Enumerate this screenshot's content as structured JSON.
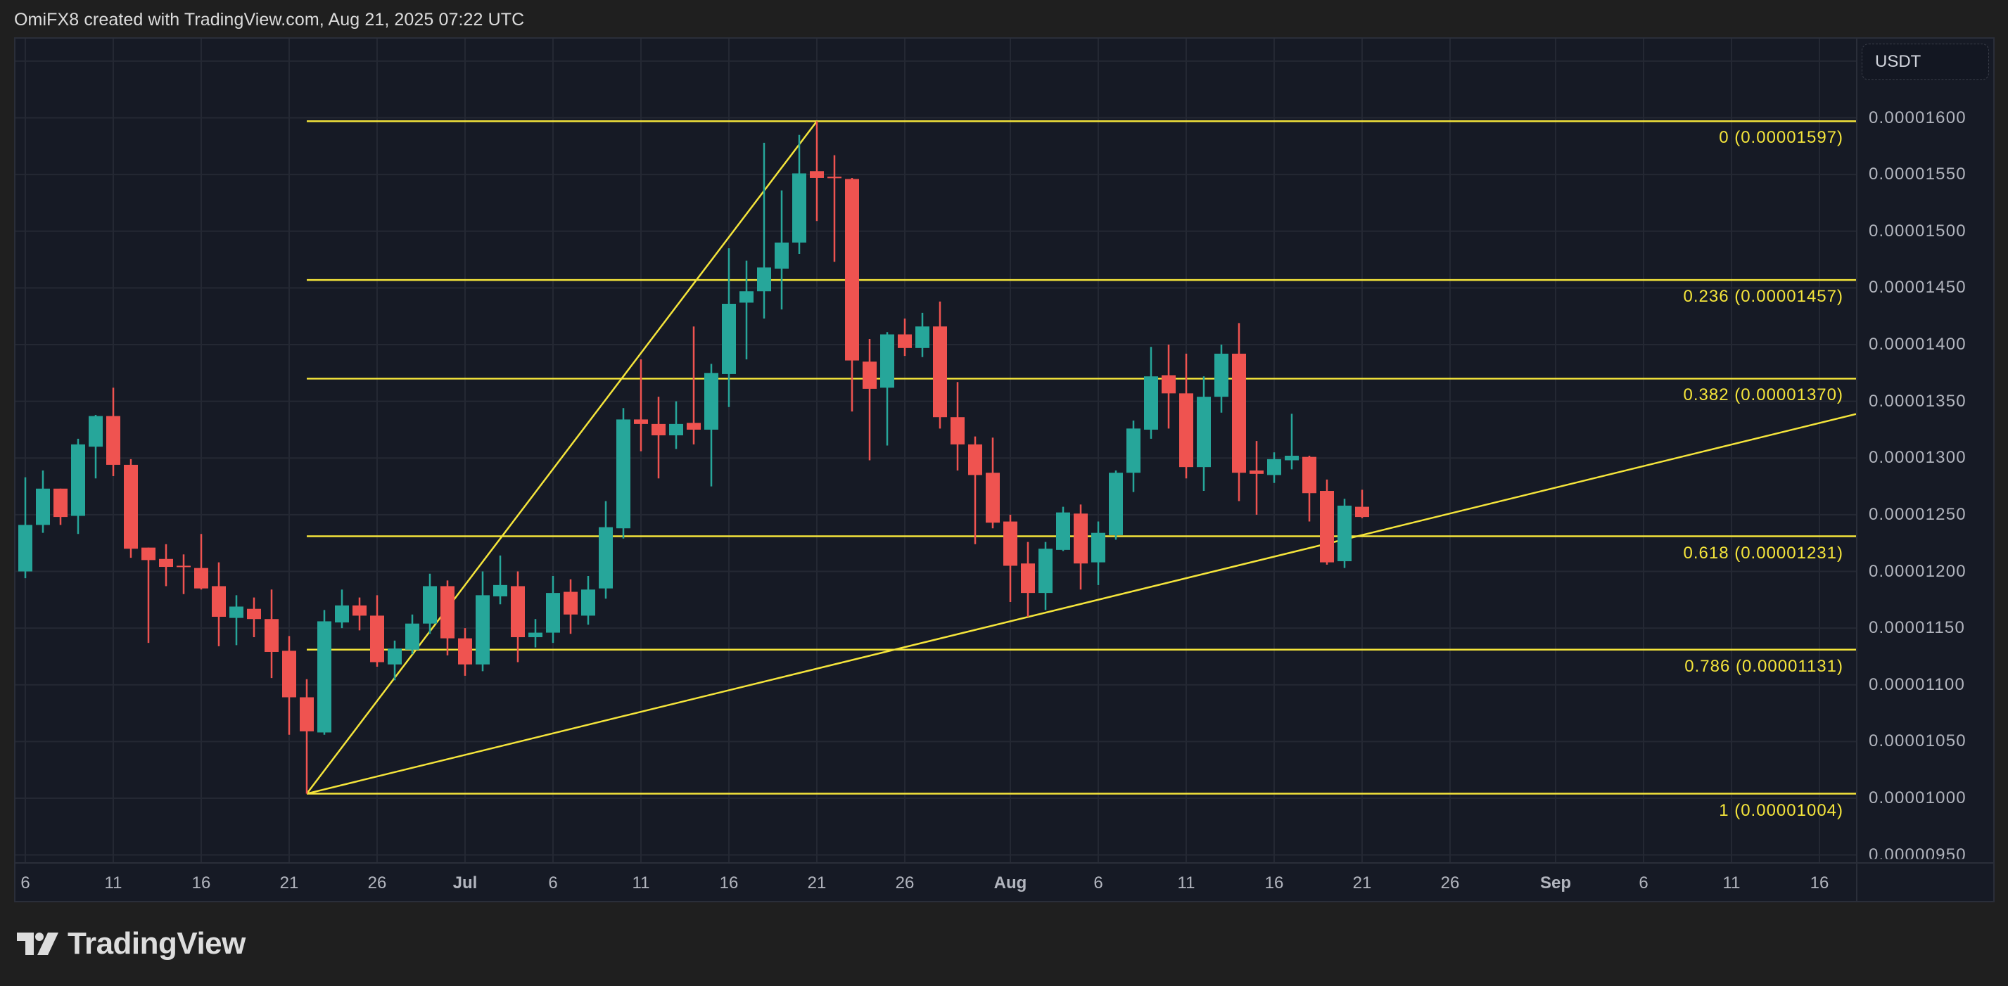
{
  "header": {
    "title": "OmiFX8 created with TradingView.com, Aug 21, 2025 07:22 UTC"
  },
  "price_axis": {
    "currency": "USDT",
    "labels": [
      "0.00001600",
      "0.00001550",
      "0.00001500",
      "0.00001450",
      "0.00001400",
      "0.00001350",
      "0.00001300",
      "0.00001250",
      "0.00001200",
      "0.00001150",
      "0.00001100",
      "0.00001050",
      "0.00001000",
      "0.00000950"
    ]
  },
  "time_axis": {
    "labels": [
      {
        "text": "6",
        "bold": false
      },
      {
        "text": "11",
        "bold": false
      },
      {
        "text": "16",
        "bold": false
      },
      {
        "text": "21",
        "bold": false
      },
      {
        "text": "26",
        "bold": false
      },
      {
        "text": "Jul",
        "bold": true
      },
      {
        "text": "6",
        "bold": false
      },
      {
        "text": "11",
        "bold": false
      },
      {
        "text": "16",
        "bold": false
      },
      {
        "text": "21",
        "bold": false
      },
      {
        "text": "26",
        "bold": false
      },
      {
        "text": "Aug",
        "bold": true
      },
      {
        "text": "6",
        "bold": false
      },
      {
        "text": "11",
        "bold": false
      },
      {
        "text": "16",
        "bold": false
      },
      {
        "text": "21",
        "bold": false
      },
      {
        "text": "26",
        "bold": false
      },
      {
        "text": "Sep",
        "bold": true
      },
      {
        "text": "6",
        "bold": false
      },
      {
        "text": "11",
        "bold": false
      },
      {
        "text": "16",
        "bold": false
      }
    ]
  },
  "fibonacci": {
    "color": "#f5e53b",
    "levels": [
      {
        "ratio": "0",
        "price": "0.00001597",
        "label": "0 (0.00001597)"
      },
      {
        "ratio": "0.236",
        "price": "0.00001457",
        "label": "0.236 (0.00001457)"
      },
      {
        "ratio": "0.382",
        "price": "0.00001370",
        "label": "0.382 (0.00001370)"
      },
      {
        "ratio": "0.618",
        "price": "0.00001231",
        "label": "0.618 (0.00001231)"
      },
      {
        "ratio": "0.786",
        "price": "0.00001131",
        "label": "0.786 (0.00001131)"
      },
      {
        "ratio": "1",
        "price": "0.00001004",
        "label": "1 (0.00001004)"
      }
    ]
  },
  "colors": {
    "up": "#26a69a",
    "down": "#ef5350",
    "background": "#161a25",
    "grid": "#242833",
    "drawing": "#f5e53b"
  },
  "logo": {
    "text": "TradingView"
  },
  "chart_data": {
    "type": "candlestick",
    "title": "OmiFX8 created with TradingView.com, Aug 21, 2025 07:22 UTC",
    "quote_currency": "USDT",
    "price_scale": 1e-08,
    "xlabel": "",
    "ylabel": "USDT",
    "ylim": [
      9.5e-06,
      1.65e-05
    ],
    "grid": true,
    "x": [
      "Jun 6",
      "Jun 7",
      "Jun 8",
      "Jun 9",
      "Jun 10",
      "Jun 11",
      "Jun 12",
      "Jun 13",
      "Jun 14",
      "Jun 15",
      "Jun 16",
      "Jun 17",
      "Jun 18",
      "Jun 19",
      "Jun 20",
      "Jun 21",
      "Jun 22",
      "Jun 23",
      "Jun 24",
      "Jun 25",
      "Jun 26",
      "Jun 27",
      "Jun 28",
      "Jun 29",
      "Jun 30",
      "Jul 1",
      "Jul 2",
      "Jul 3",
      "Jul 4",
      "Jul 5",
      "Jul 6",
      "Jul 7",
      "Jul 8",
      "Jul 9",
      "Jul 10",
      "Jul 11",
      "Jul 12",
      "Jul 13",
      "Jul 14",
      "Jul 15",
      "Jul 16",
      "Jul 17",
      "Jul 18",
      "Jul 19",
      "Jul 20",
      "Jul 21",
      "Jul 22",
      "Jul 23",
      "Jul 24",
      "Jul 25",
      "Jul 26",
      "Jul 27",
      "Jul 28",
      "Jul 29",
      "Jul 30",
      "Jul 31",
      "Aug 1",
      "Aug 2",
      "Aug 3",
      "Aug 4",
      "Aug 5",
      "Aug 6",
      "Aug 7",
      "Aug 8",
      "Aug 9",
      "Aug 10",
      "Aug 11",
      "Aug 12",
      "Aug 13",
      "Aug 14",
      "Aug 15",
      "Aug 16",
      "Aug 17",
      "Aug 18",
      "Aug 19",
      "Aug 20",
      "Aug 21"
    ],
    "ohlc_x1e8": [
      [
        1200,
        1283,
        1194,
        1241
      ],
      [
        1241,
        1289,
        1234,
        1273
      ],
      [
        1273,
        1273,
        1241,
        1248
      ],
      [
        1249,
        1317,
        1233,
        1312
      ],
      [
        1310,
        1338,
        1282,
        1337
      ],
      [
        1337,
        1362,
        1284,
        1294
      ],
      [
        1294,
        1299,
        1212,
        1220
      ],
      [
        1221,
        1221,
        1137,
        1210
      ],
      [
        1211,
        1224,
        1187,
        1204
      ],
      [
        1205,
        1215,
        1180,
        1204
      ],
      [
        1203,
        1233,
        1184,
        1185
      ],
      [
        1187,
        1208,
        1134,
        1160
      ],
      [
        1159,
        1179,
        1135,
        1169
      ],
      [
        1167,
        1177,
        1142,
        1158
      ],
      [
        1158,
        1184,
        1106,
        1129
      ],
      [
        1130,
        1143,
        1056,
        1089
      ],
      [
        1089,
        1105,
        1004,
        1059
      ],
      [
        1058,
        1166,
        1056,
        1156
      ],
      [
        1155,
        1184,
        1150,
        1170
      ],
      [
        1170,
        1177,
        1148,
        1161
      ],
      [
        1161,
        1179,
        1116,
        1120
      ],
      [
        1118,
        1139,
        1104,
        1132
      ],
      [
        1131,
        1162,
        1127,
        1154
      ],
      [
        1154,
        1198,
        1145,
        1187
      ],
      [
        1187,
        1192,
        1126,
        1141
      ],
      [
        1141,
        1150,
        1108,
        1118
      ],
      [
        1118,
        1200,
        1112,
        1179
      ],
      [
        1178,
        1214,
        1171,
        1188
      ],
      [
        1187,
        1200,
        1120,
        1142
      ],
      [
        1142,
        1158,
        1133,
        1146
      ],
      [
        1146,
        1196,
        1137,
        1181
      ],
      [
        1182,
        1193,
        1145,
        1162
      ],
      [
        1161,
        1196,
        1153,
        1184
      ],
      [
        1185,
        1262,
        1176,
        1239
      ],
      [
        1238,
        1344,
        1229,
        1334
      ],
      [
        1334,
        1387,
        1306,
        1330
      ],
      [
        1330,
        1354,
        1282,
        1320
      ],
      [
        1320,
        1350,
        1308,
        1330
      ],
      [
        1331,
        1416,
        1312,
        1325
      ],
      [
        1325,
        1383,
        1275,
        1375
      ],
      [
        1374,
        1485,
        1345,
        1436
      ],
      [
        1437,
        1474,
        1387,
        1447
      ],
      [
        1447,
        1578,
        1423,
        1468
      ],
      [
        1467,
        1536,
        1431,
        1490
      ],
      [
        1490,
        1585,
        1480,
        1551
      ],
      [
        1553,
        1597,
        1509,
        1547
      ],
      [
        1548,
        1567,
        1473,
        1547
      ],
      [
        1546,
        1547,
        1341,
        1386
      ],
      [
        1385,
        1405,
        1298,
        1361
      ],
      [
        1362,
        1411,
        1311,
        1409
      ],
      [
        1409,
        1423,
        1390,
        1397
      ],
      [
        1397,
        1428,
        1389,
        1416
      ],
      [
        1416,
        1438,
        1326,
        1336
      ],
      [
        1336,
        1367,
        1289,
        1312
      ],
      [
        1312,
        1319,
        1224,
        1285
      ],
      [
        1287,
        1318,
        1238,
        1243
      ],
      [
        1244,
        1250,
        1173,
        1205
      ],
      [
        1207,
        1226,
        1160,
        1181
      ],
      [
        1181,
        1226,
        1166,
        1220
      ],
      [
        1219,
        1257,
        1218,
        1252
      ],
      [
        1251,
        1259,
        1184,
        1207
      ],
      [
        1208,
        1244,
        1188,
        1234
      ],
      [
        1232,
        1289,
        1228,
        1287
      ],
      [
        1287,
        1333,
        1270,
        1326
      ],
      [
        1325,
        1398,
        1317,
        1372
      ],
      [
        1373,
        1400,
        1326,
        1357
      ],
      [
        1357,
        1392,
        1282,
        1292
      ],
      [
        1292,
        1372,
        1271,
        1354
      ],
      [
        1354,
        1400,
        1340,
        1392
      ],
      [
        1392,
        1419,
        1262,
        1287
      ],
      [
        1289,
        1315,
        1250,
        1286
      ],
      [
        1285,
        1305,
        1278,
        1299
      ],
      [
        1298,
        1339,
        1290,
        1302
      ],
      [
        1301,
        1302,
        1244,
        1269
      ],
      [
        1271,
        1281,
        1206,
        1208
      ],
      [
        1209,
        1264,
        1203,
        1258
      ],
      [
        1257,
        1272,
        1247,
        1248
      ]
    ],
    "fibonacci_retracement": {
      "from": {
        "date": "Jun 22",
        "price": 1.004e-05
      },
      "to": {
        "date": "Jul 21",
        "price": 1.597e-05
      },
      "levels": [
        [
          0,
          1.597e-05
        ],
        [
          0.236,
          1.457e-05
        ],
        [
          0.382,
          1.37e-05
        ],
        [
          0.618,
          1.231e-05
        ],
        [
          0.786,
          1.131e-05
        ],
        [
          1,
          1.004e-05
        ]
      ]
    },
    "trendline": {
      "from": {
        "date": "Jun 22",
        "price": 1.004e-05
      },
      "to_edge_price_approx": 1.339e-05
    }
  }
}
